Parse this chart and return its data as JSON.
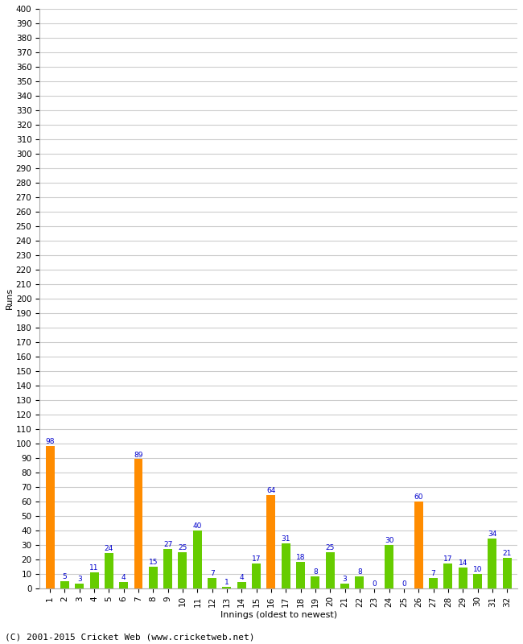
{
  "innings": [
    1,
    2,
    3,
    4,
    5,
    6,
    7,
    8,
    9,
    10,
    11,
    12,
    13,
    14,
    15,
    16,
    17,
    18,
    19,
    20,
    21,
    22,
    23,
    24,
    25,
    26,
    27,
    28,
    29,
    30,
    31,
    32
  ],
  "values": [
    98,
    5,
    3,
    11,
    24,
    4,
    89,
    15,
    27,
    25,
    40,
    7,
    1,
    4,
    17,
    64,
    31,
    18,
    8,
    25,
    3,
    8,
    0,
    30,
    0,
    60,
    7,
    17,
    14,
    10,
    34,
    21
  ],
  "highlight": [
    true,
    false,
    false,
    false,
    false,
    false,
    true,
    false,
    false,
    false,
    false,
    false,
    false,
    false,
    false,
    true,
    false,
    false,
    false,
    false,
    false,
    false,
    false,
    false,
    false,
    true,
    false,
    false,
    false,
    false,
    false,
    false
  ],
  "orange_color": "#FF8C00",
  "green_color": "#66CC00",
  "label_color": "#0000CC",
  "xlabel": "Innings (oldest to newest)",
  "ylabel": "Runs",
  "ylim": [
    0,
    400
  ],
  "yticks": [
    0,
    10,
    20,
    30,
    40,
    50,
    60,
    70,
    80,
    90,
    100,
    110,
    120,
    130,
    140,
    150,
    160,
    170,
    180,
    190,
    200,
    210,
    220,
    230,
    240,
    250,
    260,
    270,
    280,
    290,
    300,
    310,
    320,
    330,
    340,
    350,
    360,
    370,
    380,
    390,
    400
  ],
  "footer": "(C) 2001-2015 Cricket Web (www.cricketweb.net)",
  "background_color": "#FFFFFF",
  "grid_color": "#CCCCCC",
  "axis_fontsize": 8,
  "label_fontsize": 6.5,
  "tick_fontsize": 7.5,
  "footer_fontsize": 8,
  "bar_width": 0.6
}
